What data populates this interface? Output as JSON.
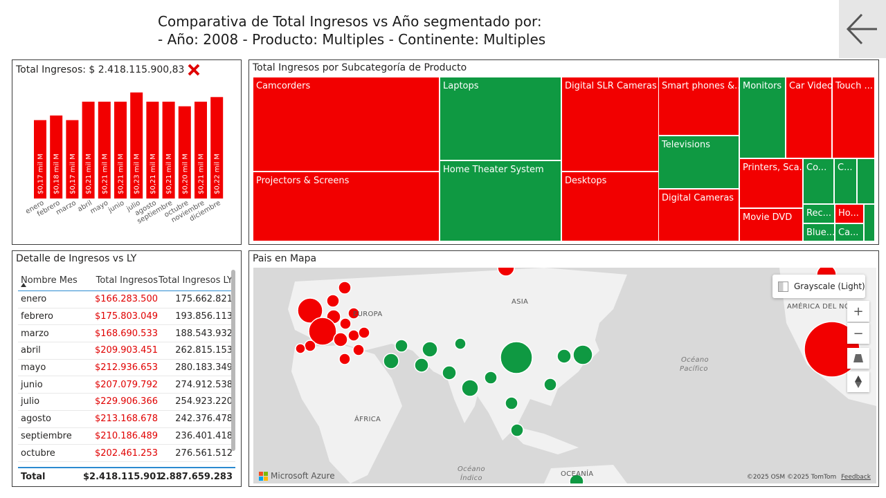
{
  "header": {
    "line1": "Comparativa de Total Ingresos vs Año segmentado por:",
    "line2": "- Año: 2008 - Producto: Multiples - Continente: Multiples"
  },
  "kpi": {
    "label": "Total Ingresos: $ 2.418.115.900,83",
    "status_icon": "x-mark-icon",
    "status_color": "#e00000"
  },
  "chart_data": {
    "type": "bar",
    "categories": [
      "enero",
      "febrero",
      "marzo",
      "abril",
      "mayo",
      "junio",
      "julio",
      "agosto",
      "septiembre",
      "octubre",
      "noviembre",
      "diciembre"
    ],
    "values": [
      0.17,
      0.18,
      0.17,
      0.21,
      0.21,
      0.21,
      0.23,
      0.21,
      0.21,
      0.2,
      0.21,
      0.22
    ],
    "data_labels": [
      "$0,17 mil M",
      "$0,18 mil M",
      "$0,17 mil M",
      "$0,21 mil M",
      "$0,21 mil M",
      "$0,21 mil M",
      "$0,23 mil M",
      "$0,21 mil M",
      "$0,21 mil M",
      "$0,20 mil M",
      "$0,21 mil M",
      "$0,22 mil M"
    ],
    "ylim": [
      0,
      0.24
    ],
    "bar_color": "#f20000",
    "grid": false
  },
  "treemap": {
    "title": "Total Ingresos por Subcategoría de Producto",
    "items": [
      {
        "label": "Camcorders",
        "status": "red"
      },
      {
        "label": "Projectors & Screens",
        "status": "red"
      },
      {
        "label": "Laptops",
        "status": "green"
      },
      {
        "label": "Home Theater System",
        "status": "green"
      },
      {
        "label": "Digital SLR Cameras",
        "status": "red"
      },
      {
        "label": "Desktops",
        "status": "red"
      },
      {
        "label": "Smart phones &...",
        "status": "red"
      },
      {
        "label": "Televisions",
        "status": "green"
      },
      {
        "label": "Digital Cameras",
        "status": "red"
      },
      {
        "label": "Monitors",
        "status": "green"
      },
      {
        "label": "Car Video",
        "status": "red"
      },
      {
        "label": "Touch ...",
        "status": "red"
      },
      {
        "label": "Printers, Sca...",
        "status": "red"
      },
      {
        "label": "Co...",
        "status": "green"
      },
      {
        "label": "C...",
        "status": "green"
      },
      {
        "label": "",
        "status": "green"
      },
      {
        "label": "Movie DVD",
        "status": "red"
      },
      {
        "label": "Rec...",
        "status": "green"
      },
      {
        "label": "Ho...",
        "status": "red"
      },
      {
        "label": "",
        "status": "green"
      },
      {
        "label": "Blue...",
        "status": "green"
      },
      {
        "label": "Ca...",
        "status": "green"
      }
    ]
  },
  "table": {
    "title": "Detalle de Ingresos vs LY",
    "columns": [
      "Nombre Mes",
      "Total Ingresos",
      "Total Ingresos LY"
    ],
    "rows": [
      [
        "enero",
        "$166.283.500",
        "175.662.821"
      ],
      [
        "febrero",
        "$175.803.049",
        "193.856.113"
      ],
      [
        "marzo",
        "$168.690.533",
        "188.543.932"
      ],
      [
        "abril",
        "$209.903.451",
        "262.815.153"
      ],
      [
        "mayo",
        "$212.936.653",
        "280.183.349"
      ],
      [
        "junio",
        "$207.079.792",
        "274.912.538"
      ],
      [
        "julio",
        "$229.906.366",
        "254.923.220"
      ],
      [
        "agosto",
        "$213.168.678",
        "242.376.478"
      ],
      [
        "septiembre",
        "$210.186.489",
        "236.401.418"
      ],
      [
        "octubre",
        "$202.461.253",
        "276.561.512"
      ]
    ],
    "total": [
      "Total",
      "$2.418.115.901",
      "2.887.659.283"
    ]
  },
  "map": {
    "title": "Pais en Mapa",
    "style_button": "Grayscale (Light)",
    "labels": {
      "asia": "ASIA",
      "europa": "EUROPA",
      "africa": "ÁFRICA",
      "oceania": "OCEANÍA",
      "north_america": "AMÉRICA DEL NOR",
      "pacific_1": "Océano",
      "pacific_2": "Pacífico",
      "indian_1": "Océano",
      "indian_2": "Índico"
    },
    "brand": "Microsoft Azure",
    "attribution": "©2025 OSM  ©2025 TomTom",
    "feedback": "Feedback",
    "controls": [
      "zoom-in-icon",
      "zoom-out-icon",
      "tilt-icon",
      "compass-icon"
    ],
    "colors": {
      "red": "#f20000",
      "green": "#0f9942"
    }
  }
}
